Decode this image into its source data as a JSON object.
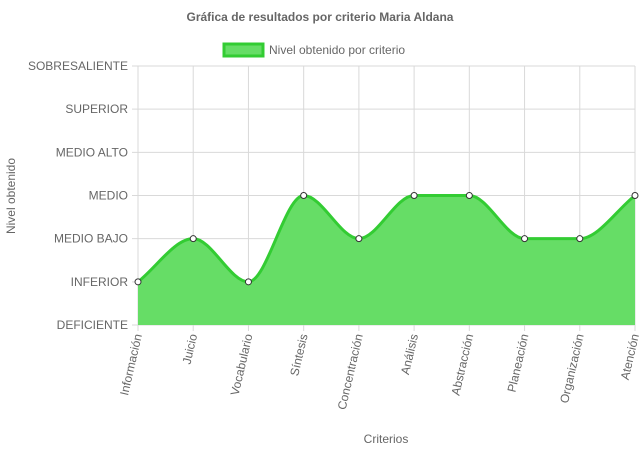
{
  "chart_data": {
    "type": "area",
    "title": "Gráfica de resultados por criterio Maria Aldana",
    "xlabel": "Criterios",
    "ylabel": "Nivel obtenido",
    "y_levels": [
      "DEFICIENTE",
      "INFERIOR",
      "MEDIO BAJO",
      "MEDIO",
      "MEDIO ALTO",
      "SUPERIOR",
      "SOBRESALIENTE"
    ],
    "categories": [
      "Información",
      "Juicio",
      "Vocabulario",
      "Síntesis",
      "Concentración",
      "Análisis",
      "Abstracción",
      "Planeación",
      "Organización",
      "Atención"
    ],
    "series": [
      {
        "name": "Nivel obtenido por criterio",
        "values": [
          "INFERIOR",
          "MEDIO BAJO",
          "INFERIOR",
          "MEDIO",
          "MEDIO BAJO",
          "MEDIO",
          "MEDIO",
          "MEDIO BAJO",
          "MEDIO BAJO",
          "MEDIO"
        ]
      }
    ],
    "grid": true,
    "legend_position": "top",
    "colors": {
      "fill": "#66dd66",
      "line": "#33cc33",
      "point_fill": "#ffffff",
      "point_stroke": "#333333",
      "grid": "#d9d9d9",
      "text": "#666666"
    }
  }
}
